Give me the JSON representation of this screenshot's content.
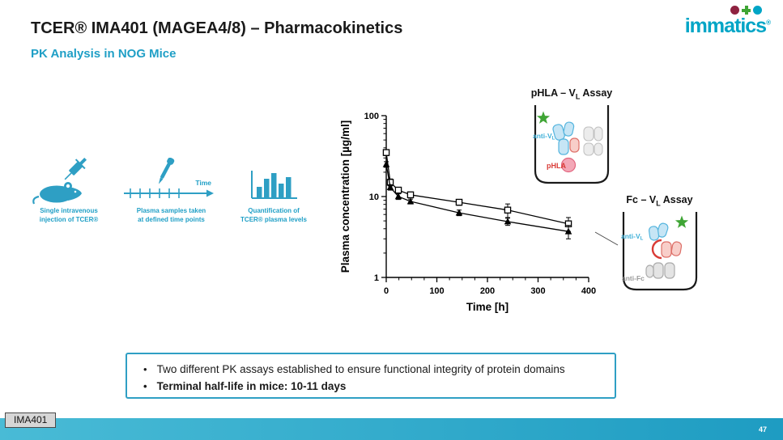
{
  "header": {
    "title": "TCER® IMA401 (MAGEA4/8) – Pharmacokinetics",
    "subtitle": "PK Analysis in NOG Mice"
  },
  "logo": {
    "text": "immatics",
    "reg": "®"
  },
  "workflow": {
    "steps": [
      {
        "caption": "Single intravenous\ninjection of TCER®"
      },
      {
        "caption": "Plasma samples taken\nat defined time points",
        "axis_label": "Time"
      },
      {
        "caption": "Quantification of\nTCER® plasma levels"
      }
    ]
  },
  "chart_data": {
    "type": "line",
    "x": [
      0,
      8,
      24,
      48,
      144,
      240,
      360
    ],
    "series": [
      {
        "name": "pHLA – VL Assay",
        "marker": "open-square",
        "values": [
          35,
          15,
          12,
          10.5,
          8.5,
          6.8,
          4.6
        ],
        "errors": [
          3,
          1.5,
          1,
          0.8,
          0.7,
          1.3,
          0.9
        ]
      },
      {
        "name": "Fc – VL Assay",
        "marker": "filled-triangle",
        "values": [
          25,
          13,
          10,
          8.7,
          6.3,
          4.9,
          3.7
        ],
        "errors": [
          2,
          1,
          0.8,
          0.6,
          0.5,
          0.5,
          0.7
        ]
      }
    ],
    "xlabel": "Time [h]",
    "ylabel": "Plasma concentration [µg/ml]",
    "xlim": [
      0,
      400
    ],
    "ylim": [
      1,
      100
    ],
    "yscale": "log",
    "x_ticks": [
      0,
      100,
      200,
      300,
      400
    ],
    "y_ticks": [
      1,
      10,
      100
    ],
    "legend": "none"
  },
  "assays": [
    {
      "title": {
        "prefix": "pHLA – V",
        "sub": "L",
        "suffix": " Assay"
      },
      "labels": {
        "anti_vl": {
          "prefix": "anti-V",
          "sub": "L"
        },
        "phla": "pHLA"
      }
    },
    {
      "title": {
        "prefix": "Fc – V",
        "sub": "L",
        "suffix": " Assay"
      },
      "labels": {
        "anti_vl": {
          "prefix": "anti-V",
          "sub": "L"
        },
        "anti_fc": "anti-Fc"
      }
    }
  ],
  "summary": {
    "bullets": [
      {
        "text": "Two different PK assays established to ensure functional integrity of protein domains"
      },
      {
        "text": "Terminal half-life in mice: 10-11 days"
      }
    ]
  },
  "footer": {
    "label": "IMA401",
    "page": "47"
  },
  "colors": {
    "accent_teal": "#1F9FC6",
    "logo_teal": "#00A5C6",
    "green": "#3FA535",
    "red": "#D93A35",
    "maroon": "#8E2240",
    "footer_teal": "#2BA9CB"
  }
}
